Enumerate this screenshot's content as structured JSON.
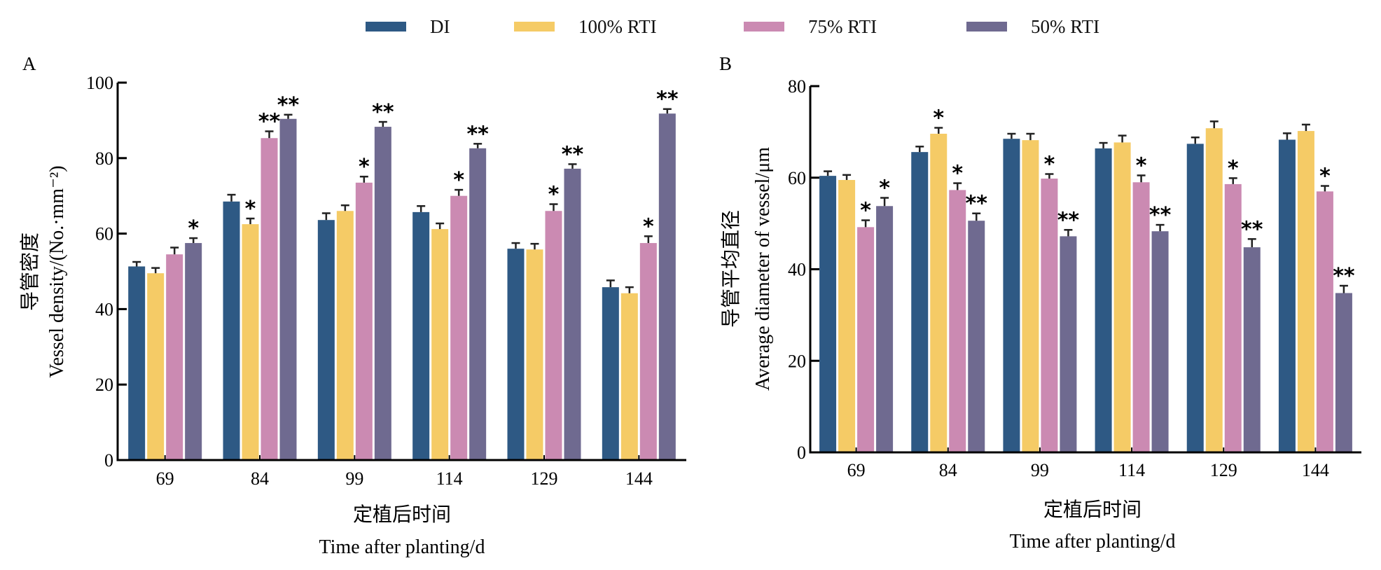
{
  "legend": {
    "items": [
      {
        "label": "DI",
        "color": "#2e5984"
      },
      {
        "label": "100% RTI",
        "color": "#f5cb66"
      },
      {
        "label": "75% RTI",
        "color": "#cb8ab2"
      },
      {
        "label": "50% RTI",
        "color": "#6f6a90"
      }
    ]
  },
  "chart_data": [
    {
      "type": "bar",
      "panel": "A",
      "categories": [
        "69",
        "84",
        "99",
        "114",
        "129",
        "144"
      ],
      "xlabel_cn": "定植后时间",
      "xlabel": "Time after planting/d",
      "ylabel_cn": "导管密度",
      "ylabel": "Vessel density/(No.·mm⁻²)",
      "ylim": [
        0,
        100
      ],
      "yticks": [
        0,
        20,
        40,
        60,
        80,
        100
      ],
      "grid": false,
      "legend_position": "top-center",
      "series": [
        {
          "name": "DI",
          "values": [
            51.3,
            68.5,
            63.6,
            65.7,
            56.0,
            45.8
          ],
          "errors": [
            1.2,
            1.8,
            1.8,
            1.6,
            1.5,
            1.8
          ],
          "significance": [
            "",
            "",
            "",
            "",
            "",
            ""
          ]
        },
        {
          "name": "100% RTI",
          "values": [
            49.5,
            62.5,
            66.0,
            61.2,
            55.8,
            44.2
          ],
          "errors": [
            1.4,
            1.5,
            1.5,
            1.5,
            1.5,
            1.6
          ],
          "significance": [
            "",
            "*",
            "",
            "",
            "",
            ""
          ]
        },
        {
          "name": "75% RTI",
          "values": [
            54.5,
            85.3,
            73.5,
            70.0,
            66.0,
            57.5
          ],
          "errors": [
            1.8,
            1.8,
            1.6,
            1.6,
            1.8,
            1.8
          ],
          "significance": [
            "",
            "**",
            "*",
            "*",
            "*",
            "*"
          ]
        },
        {
          "name": "50% RTI",
          "values": [
            57.5,
            90.4,
            88.3,
            82.6,
            77.2,
            91.8
          ],
          "errors": [
            1.3,
            1.1,
            1.3,
            1.2,
            1.2,
            1.2
          ],
          "significance": [
            "*",
            "**",
            "**",
            "**",
            "**",
            "**"
          ]
        }
      ]
    },
    {
      "type": "bar",
      "panel": "B",
      "categories": [
        "69",
        "84",
        "99",
        "114",
        "129",
        "144"
      ],
      "xlabel_cn": "定植后时间",
      "xlabel": "Time after planting/d",
      "ylabel_cn": "导管平均直径",
      "ylabel": "Average diameter of vessel/μm",
      "ylim": [
        0,
        80
      ],
      "yticks": [
        0,
        20,
        40,
        60,
        80
      ],
      "grid": false,
      "legend_position": "top-center",
      "series": [
        {
          "name": "DI",
          "values": [
            60.4,
            65.6,
            68.5,
            66.4,
            67.4,
            68.3
          ],
          "errors": [
            1.0,
            1.2,
            1.1,
            1.2,
            1.4,
            1.4
          ],
          "significance": [
            "",
            "",
            "",
            "",
            "",
            ""
          ]
        },
        {
          "name": "100% RTI",
          "values": [
            59.5,
            69.6,
            68.2,
            67.7,
            70.8,
            70.2
          ],
          "errors": [
            1.1,
            1.3,
            1.4,
            1.5,
            1.5,
            1.4
          ],
          "significance": [
            "",
            "*",
            "",
            "",
            "",
            ""
          ]
        },
        {
          "name": "75% RTI",
          "values": [
            49.2,
            57.3,
            59.8,
            59.0,
            58.6,
            57.0
          ],
          "errors": [
            1.5,
            1.5,
            1.0,
            1.5,
            1.3,
            1.2
          ],
          "significance": [
            "*",
            "*",
            "*",
            "*",
            "*",
            "*"
          ]
        },
        {
          "name": "50% RTI",
          "values": [
            53.8,
            50.6,
            47.2,
            48.3,
            44.8,
            34.8
          ],
          "errors": [
            1.8,
            1.6,
            1.4,
            1.4,
            1.8,
            1.6
          ],
          "significance": [
            "*",
            "**",
            "**",
            "**",
            "**",
            "**"
          ]
        }
      ]
    }
  ]
}
